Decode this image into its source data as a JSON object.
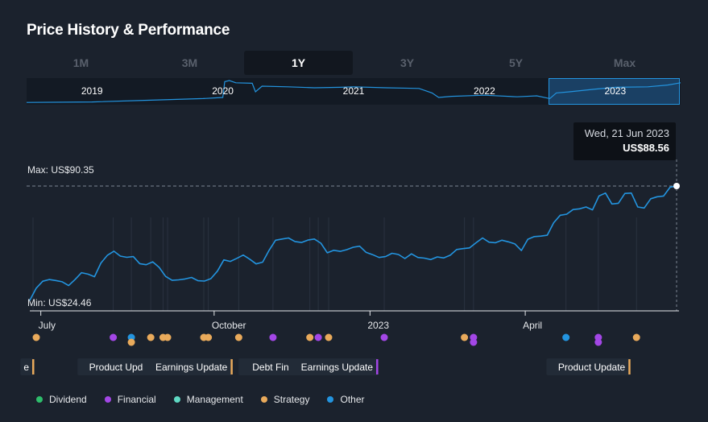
{
  "header": {
    "title": "Price History & Performance"
  },
  "range_tabs": [
    "1M",
    "3M",
    "1Y",
    "3Y",
    "5Y",
    "Max"
  ],
  "active_range": "1Y",
  "navigator": {
    "years": [
      "2019",
      "2020",
      "2021",
      "2022",
      "2023"
    ],
    "selected_label": "2023"
  },
  "tooltip": {
    "date": "Wed, 21 Jun 2023",
    "price": "US$88.56"
  },
  "colors": {
    "line": "#2394df",
    "background": "#1b222d",
    "dividend": "#2ebd6b",
    "financial": "#a347e6",
    "management": "#5fd9c3",
    "strategy": "#e9aa5b",
    "other": "#2394df"
  },
  "chart_data": {
    "type": "line",
    "title": "Price History & Performance",
    "currency": "US$",
    "ylim": [
      24.46,
      90.35
    ],
    "max_label": "Max: US$90.35",
    "min_label": "Min: US$24.46",
    "x_ticks": [
      "July",
      "October",
      "2023",
      "April"
    ],
    "x_tick_positions": [
      0.017,
      0.285,
      0.526,
      0.766
    ],
    "series": [
      {
        "name": "Price",
        "x": [
          0,
          0.01,
          0.02,
          0.03,
          0.04,
          0.05,
          0.06,
          0.07,
          0.08,
          0.09,
          0.1,
          0.11,
          0.12,
          0.13,
          0.14,
          0.15,
          0.16,
          0.17,
          0.18,
          0.19,
          0.2,
          0.21,
          0.22,
          0.23,
          0.24,
          0.25,
          0.26,
          0.27,
          0.28,
          0.29,
          0.3,
          0.31,
          0.32,
          0.33,
          0.34,
          0.35,
          0.36,
          0.37,
          0.38,
          0.39,
          0.4,
          0.41,
          0.42,
          0.43,
          0.44,
          0.45,
          0.46,
          0.47,
          0.48,
          0.49,
          0.5,
          0.51,
          0.52,
          0.53,
          0.54,
          0.55,
          0.56,
          0.57,
          0.58,
          0.59,
          0.6,
          0.61,
          0.62,
          0.63,
          0.64,
          0.65,
          0.66,
          0.67,
          0.68,
          0.69,
          0.7,
          0.71,
          0.72,
          0.73,
          0.74,
          0.75,
          0.76,
          0.77,
          0.78,
          0.79,
          0.8,
          0.81,
          0.82,
          0.83,
          0.84,
          0.85,
          0.86,
          0.87,
          0.88,
          0.89,
          0.9,
          0.91,
          0.92,
          0.93,
          0.94,
          0.95,
          0.96,
          0.97,
          0.98,
          0.99,
          1.0
        ],
        "values": [
          24.5,
          31.5,
          35.5,
          36.5,
          35.9,
          35.2,
          33.0,
          36.5,
          40.4,
          39.6,
          38.1,
          46.0,
          50.5,
          52.8,
          50.0,
          49.3,
          49.7,
          45.6,
          45.0,
          46.7,
          43.5,
          38.3,
          36.0,
          36.3,
          36.8,
          37.7,
          35.8,
          35.6,
          37.0,
          41.3,
          47.8,
          46.9,
          48.7,
          50.6,
          48.2,
          45.5,
          46.5,
          53.3,
          59.1,
          59.8,
          60.4,
          58.4,
          57.8,
          59.2,
          59.8,
          57.4,
          51.9,
          53.3,
          52.7,
          53.7,
          55.1,
          55.7,
          52.1,
          50.8,
          49.2,
          49.7,
          51.6,
          50.9,
          48.6,
          51.3,
          49.2,
          48.8,
          48.0,
          49.5,
          48.9,
          50.5,
          53.8,
          54.3,
          54.7,
          57.7,
          60.4,
          58.0,
          57.7,
          59.1,
          58.2,
          57.0,
          53.2,
          59.7,
          61.2,
          61.5,
          62.0,
          69.2,
          73.5,
          74.1,
          76.8,
          77.2,
          78.3,
          76.6,
          84.6,
          86.3,
          80.0,
          80.4,
          86.1,
          86.3,
          78.3,
          77.7,
          83.0,
          84.2,
          84.6,
          89.7,
          90.35
        ]
      }
    ],
    "events": [
      {
        "x": 0.005,
        "type": "strategy",
        "label": "e"
      },
      {
        "x": 0.129,
        "type": "financial"
      },
      {
        "x": 0.157,
        "type": "other"
      },
      {
        "x": 0.157,
        "type": "strategy",
        "offset": 1
      },
      {
        "x": 0.187,
        "type": "strategy"
      },
      {
        "x": 0.206,
        "type": "strategy"
      },
      {
        "x": 0.213,
        "type": "strategy",
        "label": "Product Update"
      },
      {
        "x": 0.269,
        "type": "strategy"
      },
      {
        "x": 0.276,
        "type": "strategy"
      },
      {
        "x": 0.323,
        "type": "strategy",
        "label": "Earnings Update"
      },
      {
        "x": 0.376,
        "type": "financial"
      },
      {
        "x": 0.433,
        "type": "strategy"
      },
      {
        "x": 0.446,
        "type": "financial"
      },
      {
        "x": 0.462,
        "type": "strategy",
        "label": "Debt Financing"
      },
      {
        "x": 0.548,
        "type": "financial",
        "label": "Earnings Update"
      },
      {
        "x": 0.672,
        "type": "strategy"
      },
      {
        "x": 0.686,
        "type": "financial"
      },
      {
        "x": 0.686,
        "type": "financial",
        "offset": 1
      },
      {
        "x": 0.829,
        "type": "other"
      },
      {
        "x": 0.879,
        "type": "financial"
      },
      {
        "x": 0.879,
        "type": "financial",
        "offset": 1
      },
      {
        "x": 0.938,
        "type": "strategy",
        "label": "Product Update"
      }
    ],
    "legend": [
      {
        "key": "dividend",
        "label": "Dividend"
      },
      {
        "key": "financial",
        "label": "Financial"
      },
      {
        "key": "management",
        "label": "Management"
      },
      {
        "key": "strategy",
        "label": "Strategy"
      },
      {
        "key": "other",
        "label": "Other"
      }
    ]
  }
}
